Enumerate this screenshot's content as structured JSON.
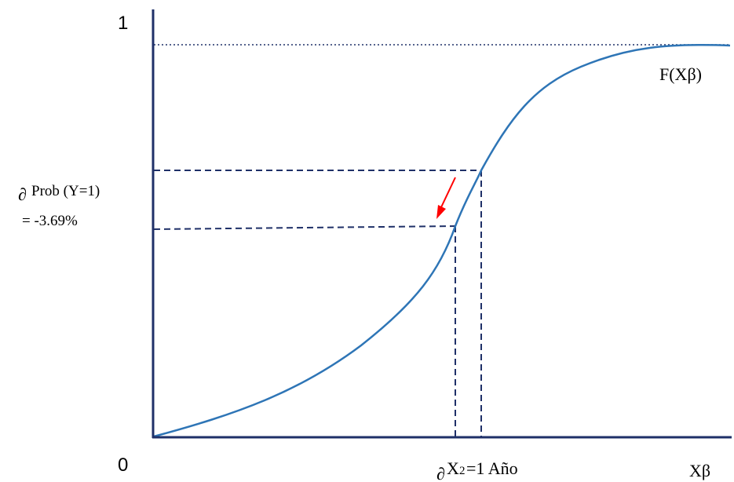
{
  "labels": {
    "y_top": "1",
    "origin": "0",
    "curve": "F(Xβ)",
    "prob_partial_symbol": "∂",
    "prob_label": "Prob (Y=1)",
    "prob_value": "= -3.69%",
    "x_partial_symbol": "∂",
    "x_var": "X",
    "x_sub": "2",
    "x_value": "=1 Año",
    "x_axis": "Xβ"
  },
  "colors": {
    "axis": "#1f3068",
    "curve": "#2e75b6",
    "guides": "#1f3068",
    "arrow": "#ff0000"
  }
}
